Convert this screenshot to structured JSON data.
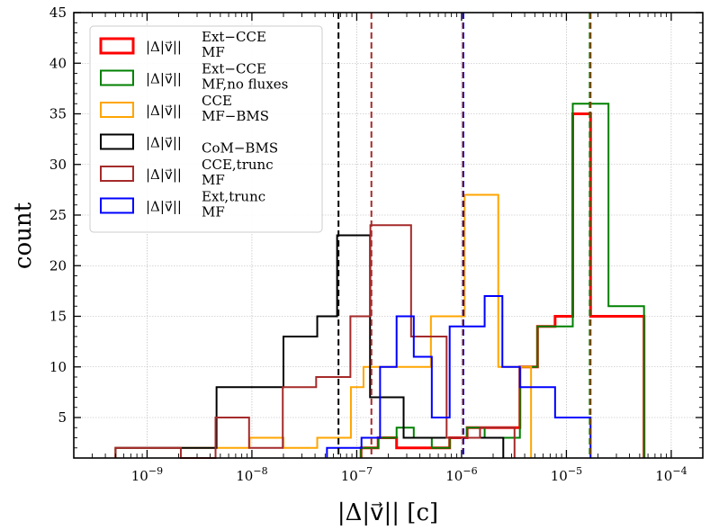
{
  "chart_data": {
    "type": "histogram",
    "title": "",
    "xlabel": "|Δ|v⃗|| [c]",
    "ylabel": "count",
    "xscale": "log",
    "xlim": [
      2e-10,
      0.0002
    ],
    "ylim": [
      1,
      45
    ],
    "grid": true,
    "legend_position": "upper-left",
    "yticks": [
      5,
      10,
      15,
      20,
      25,
      30,
      35,
      40,
      45
    ],
    "xticks": [
      {
        "value": 1e-09,
        "base": "10",
        "exp": "−9"
      },
      {
        "value": 1e-08,
        "base": "10",
        "exp": "−8"
      },
      {
        "value": 1e-07,
        "base": "10",
        "exp": "−7"
      },
      {
        "value": 1e-06,
        "base": "10",
        "exp": "−6"
      },
      {
        "value": 1e-05,
        "base": "10",
        "exp": "−5"
      },
      {
        "value": 0.0001,
        "base": "10",
        "exp": "−4"
      }
    ],
    "series": [
      {
        "name": "ext-cce-mf",
        "label_main": "|Δ|v⃗||",
        "label_sup": "Ext−CCE",
        "label_sub": "MF",
        "color": "#ff0000",
        "legend_bold": true,
        "edges": [
          1.1e-07,
          1.6e-07,
          2.4e-07,
          3.5e-07,
          5.2e-07,
          7.7e-07,
          1.13e-06,
          1.66e-06,
          2.45e-06,
          3.6e-06,
          5.3e-06,
          7.8e-06,
          1.15e-05,
          1.7e-05,
          2.52e-05,
          3.7e-05,
          5.5e-05
        ],
        "counts": [
          2,
          3,
          2,
          2,
          2,
          3,
          4,
          4,
          4,
          10,
          14,
          15,
          35,
          15,
          15,
          15
        ],
        "median": 1.7e-05
      },
      {
        "name": "ext-cce-mf-no-fluxes",
        "label_main": "|Δ|v⃗||",
        "label_sup": "Ext−CCE",
        "label_sub": "MF,no fluxes",
        "color": "#008000",
        "legend_bold": false,
        "edges": [
          1.1e-07,
          1.6e-07,
          2.4e-07,
          3.5e-07,
          5.2e-07,
          7.7e-07,
          1.13e-06,
          1.66e-06,
          2.45e-06,
          3.6e-06,
          5.3e-06,
          7.8e-06,
          1.15e-05,
          1.7e-05,
          2.52e-05,
          3.7e-05,
          5.5e-05
        ],
        "counts": [
          2,
          3,
          4,
          3,
          2,
          3,
          4,
          3,
          3,
          10,
          14,
          14,
          36,
          36,
          16,
          16
        ],
        "median": 1.67e-05
      },
      {
        "name": "cce-mf-bms",
        "label_main": "|Δ|v⃗||",
        "label_sup": "CCE",
        "label_sub": "MF−BMS",
        "color": "#ffa500",
        "legend_bold": false,
        "edges": [
          5e-10,
          1.04e-09,
          2.2e-09,
          4.6e-09,
          9.5e-09,
          2e-08,
          4.2e-08,
          8.8e-08,
          1.16e-07,
          2.45e-07,
          5.1e-07,
          1.07e-06,
          2.24e-06,
          4.6e-06
        ],
        "counts": [
          2,
          2,
          2,
          2,
          3,
          2,
          3,
          8,
          10,
          10,
          15,
          27,
          10
        ],
        "median": 1.02e-06
      },
      {
        "name": "com-bms",
        "label_main": "|Δ|v⃗||",
        "label_sup": "",
        "label_sub": "CoM−BMS",
        "color": "#000000",
        "legend_bold": false,
        "edges": [
          5e-10,
          1.04e-09,
          2.2e-09,
          4.6e-09,
          9.5e-09,
          2e-08,
          4.2e-08,
          6.5e-08,
          1.34e-07,
          2.8e-07,
          5.8e-07,
          1.2e-06,
          2.5e-06
        ],
        "counts": [
          2,
          2,
          2,
          8,
          8,
          13,
          15,
          23,
          7,
          3,
          3,
          3
        ],
        "median": 6.7e-08
      },
      {
        "name": "cce-trunc-mf",
        "label_main": "|Δ|v⃗||",
        "label_sup": "CCE,trunc",
        "label_sub": "MF",
        "color": "#a52a2a",
        "legend_bold": false,
        "edges": [
          5e-10,
          2.1e-09,
          4.5e-09,
          9.4e-09,
          1.97e-08,
          4.1e-08,
          8.7e-08,
          1.35e-07,
          3.3e-07,
          7.2e-07,
          1.5e-06,
          3.2e-06
        ],
        "counts": [
          2,
          1,
          5,
          2,
          8,
          9,
          15,
          24,
          13,
          3,
          4
        ],
        "median": 1.38e-07
      },
      {
        "name": "ext-trunc-mf",
        "label_main": "|Δ|v⃗||",
        "label_sup": "Ext,trunc",
        "label_sub": "MF",
        "color": "#0000ff",
        "legend_bold": false,
        "edges": [
          5.2e-08,
          1.11e-07,
          1.67e-07,
          2.4e-07,
          3.5e-07,
          5.2e-07,
          7.7e-07,
          1.13e-06,
          1.66e-06,
          2.45e-06,
          3.6e-06,
          7.8e-06,
          1.7e-05
        ],
        "counts": [
          2,
          3,
          10,
          15,
          11,
          5,
          14,
          14,
          17,
          10,
          8,
          5
        ],
        "median": 1.04e-06
      }
    ]
  }
}
